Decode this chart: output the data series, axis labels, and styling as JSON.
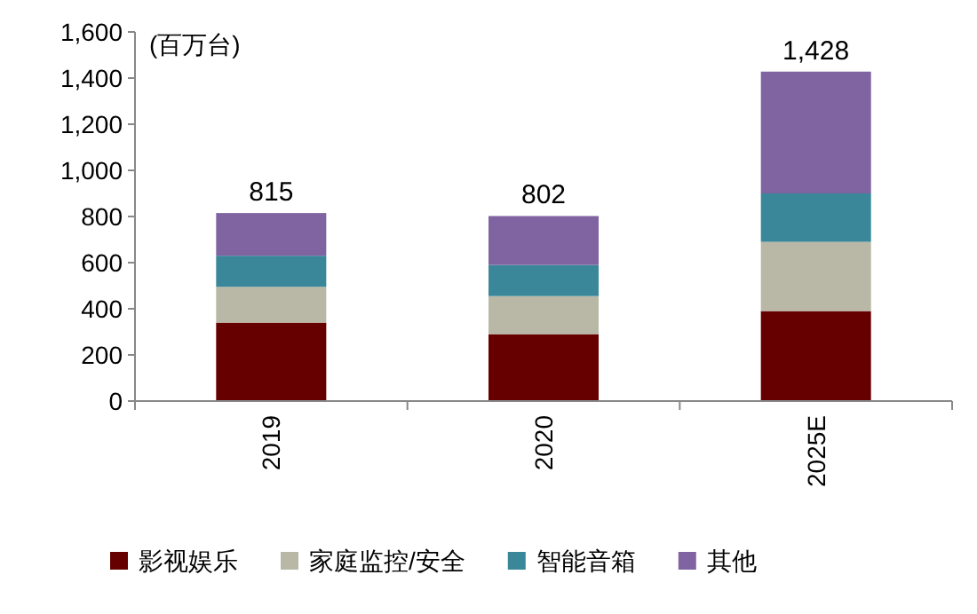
{
  "chart_data": {
    "type": "bar",
    "stacked": true,
    "ylabel": "(百万台)",
    "categories": [
      "2019",
      "2020",
      "2025E"
    ],
    "series": [
      {
        "name": "影视娱乐",
        "color": "#660000",
        "values": [
          340,
          290,
          390
        ]
      },
      {
        "name": "家庭监控/安全",
        "color": "#b9b8a6",
        "values": [
          155,
          165,
          300
        ]
      },
      {
        "name": "智能音箱",
        "color": "#3a8799",
        "values": [
          135,
          135,
          210
        ]
      },
      {
        "name": "其他",
        "color": "#8063a1",
        "values": [
          185,
          212,
          528
        ]
      }
    ],
    "totals": [
      "815",
      "802",
      "1,428"
    ],
    "ylim": [
      0,
      1600
    ],
    "yticks": [
      0,
      200,
      400,
      600,
      800,
      {
        "value": 1000,
        "label": "1,000"
      },
      {
        "value": 1200,
        "label": "1,200"
      },
      {
        "value": 1400,
        "label": "1,400"
      },
      {
        "value": 1600,
        "label": "1,600"
      }
    ],
    "legend": "bottom"
  }
}
